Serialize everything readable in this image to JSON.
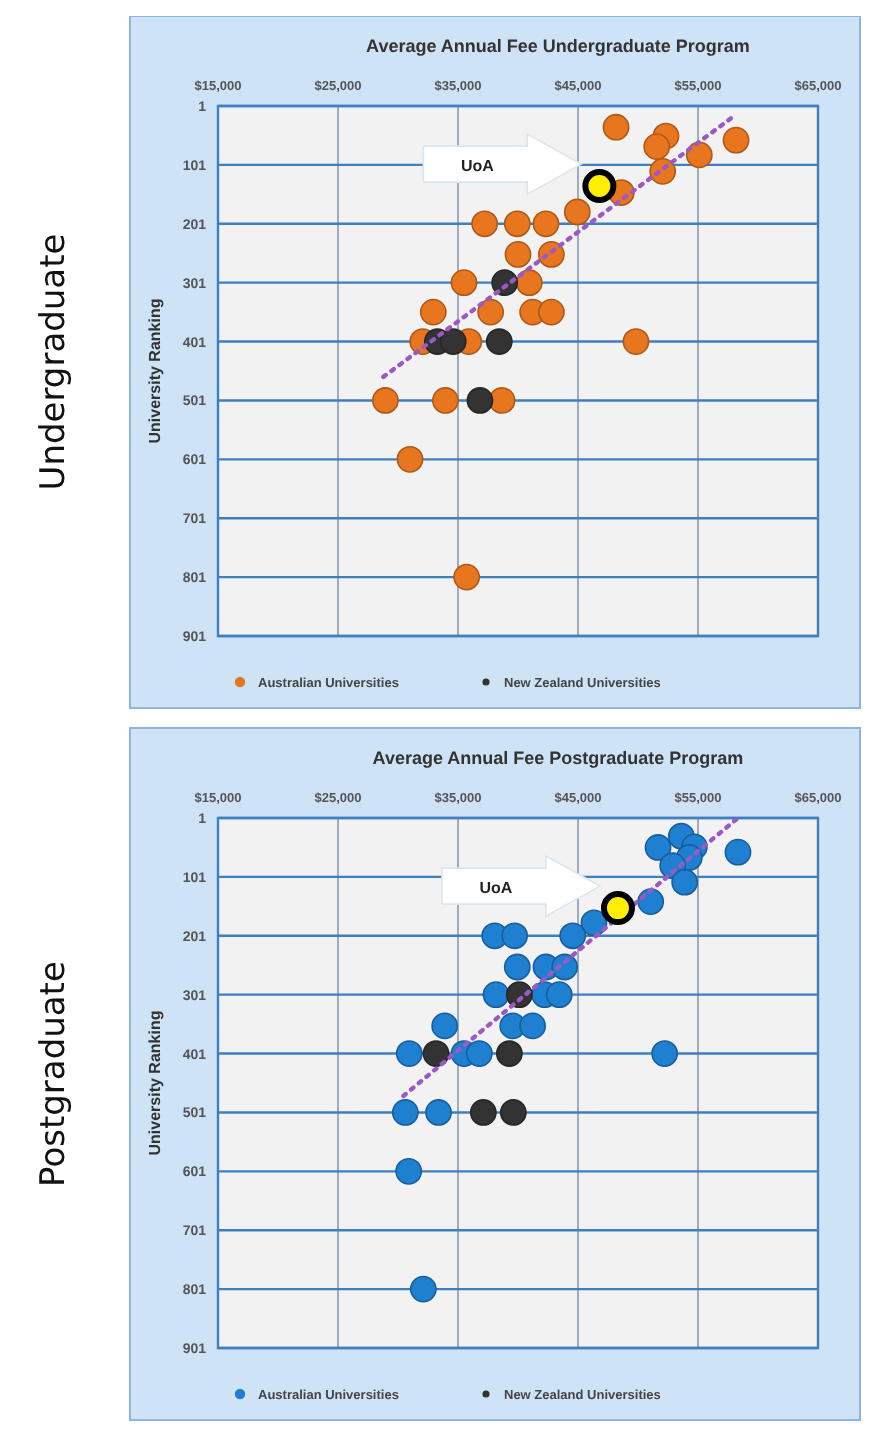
{
  "chart_data": [
    {
      "type": "scatter",
      "title": "Average Annual Fee Undergraduate Program",
      "ylabel": "University Ranking",
      "xlim": [
        15000,
        65000
      ],
      "xticks": [
        {
          "value": 15000,
          "label": "$15,000"
        },
        {
          "value": 25000,
          "label": "$25,000"
        },
        {
          "value": 35000,
          "label": "$35,000"
        },
        {
          "value": 45000,
          "label": "$45,000"
        },
        {
          "value": 55000,
          "label": "$55,000"
        },
        {
          "value": 65000,
          "label": "$65,000"
        }
      ],
      "ylim": [
        901,
        1
      ],
      "yticks": [
        1,
        101,
        201,
        301,
        401,
        501,
        601,
        701,
        801,
        901
      ],
      "grid": true,
      "legend": "bottom",
      "marker": "circle",
      "series": [
        {
          "name": "Australian Universities",
          "color": "#e8761e",
          "x": [
            48170,
            52330,
            51560,
            58170,
            55110,
            52060,
            48610,
            44940,
            37220,
            39940,
            42330,
            40000,
            42780,
            35500,
            40940,
            32940,
            37720,
            41220,
            42780,
            32060,
            35900,
            49830,
            28950,
            33950,
            38670,
            31000,
            35720
          ],
          "values": [
            37,
            52,
            70,
            59,
            84,
            112,
            148,
            181,
            201,
            201,
            201,
            253,
            253,
            301,
            301,
            351,
            351,
            351,
            351,
            401,
            401,
            401,
            501,
            501,
            501,
            601,
            801
          ]
        },
        {
          "name": "New Zealand Universities",
          "color": "#333333",
          "x": [
            38890,
            33280,
            34600,
            38440,
            36830
          ],
          "values": [
            301,
            401,
            401,
            401,
            501
          ]
        },
        {
          "type": "line",
          "color": "#9b59c6",
          "line_style": "dotted",
          "marker": "none",
          "x": [
            28780,
            58000
          ],
          "values": [
            461,
            18
          ]
        },
        {
          "color": "#ffee00",
          "x": [
            46780
          ],
          "values": [
            137
          ]
        }
      ],
      "annotations": [
        "UoA",
        "Undergraduate"
      ]
    },
    {
      "type": "scatter",
      "title": "Average Annual Fee Postgraduate Program",
      "ylabel": "University Ranking",
      "xlim": [
        15000,
        65000
      ],
      "xticks": [
        {
          "value": 15000,
          "label": "$15,000"
        },
        {
          "value": 25000,
          "label": "$25,000"
        },
        {
          "value": 35000,
          "label": "$35,000"
        },
        {
          "value": 45000,
          "label": "$45,000"
        },
        {
          "value": 55000,
          "label": "$55,000"
        },
        {
          "value": 65000,
          "label": "$65,000"
        }
      ],
      "ylim": [
        901,
        1
      ],
      "yticks": [
        1,
        101,
        201,
        301,
        401,
        501,
        601,
        701,
        801,
        901
      ],
      "grid": true,
      "legend": "bottom",
      "marker": "circle",
      "series": [
        {
          "name": "Australian Universities",
          "color": "#1f7fd0",
          "x": [
            53610,
            51670,
            54700,
            54280,
            58330,
            52890,
            53890,
            51060,
            46330,
            44560,
            38060,
            39720,
            39940,
            42330,
            43890,
            38170,
            42220,
            43440,
            33890,
            39560,
            41220,
            30940,
            35500,
            36780,
            52220,
            30610,
            33380,
            30890,
            32110
          ],
          "values": [
            32,
            51,
            50,
            68,
            59,
            82,
            110,
            143,
            179,
            201,
            201,
            201,
            254,
            254,
            254,
            301,
            301,
            301,
            354,
            354,
            354,
            401,
            401,
            401,
            401,
            501,
            501,
            601,
            801
          ]
        },
        {
          "name": "New Zealand Universities",
          "color": "#333333",
          "x": [
            40110,
            33170,
            39280,
            37110,
            39610
          ],
          "values": [
            301,
            401,
            401,
            501,
            501
          ]
        },
        {
          "type": "line",
          "color": "#9b59c6",
          "line_style": "dotted",
          "marker": "none",
          "x": [
            30450,
            58330
          ],
          "values": [
            473,
            1
          ]
        },
        {
          "color": "#ffee00",
          "x": [
            48330
          ],
          "values": [
            154
          ]
        }
      ],
      "annotations": [
        "UoA",
        "Postgraduate"
      ]
    }
  ]
}
